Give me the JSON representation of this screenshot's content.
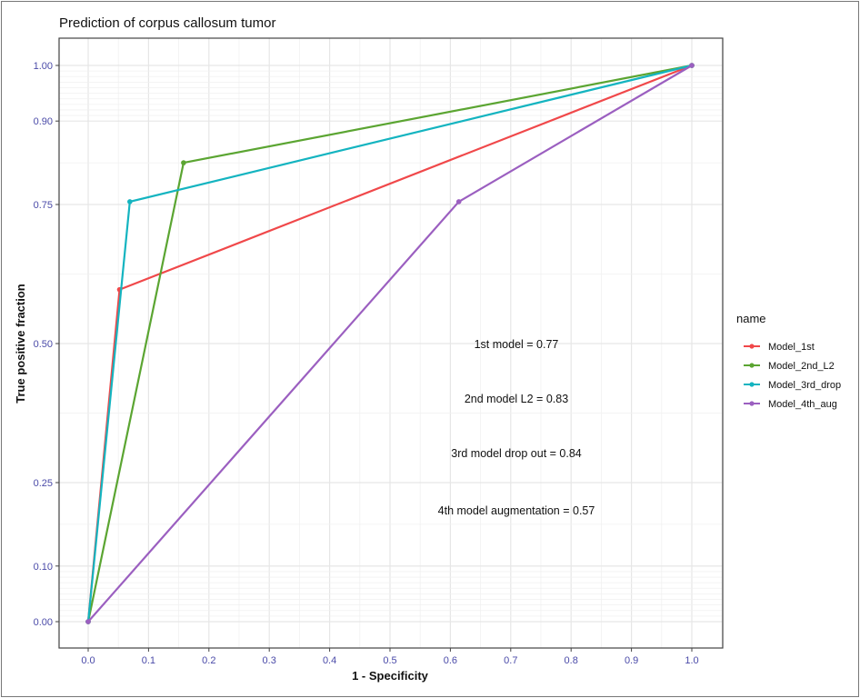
{
  "chart_data": {
    "type": "line",
    "title": "Prediction of corpus callosum tumor",
    "xlabel": "1 - Specificity",
    "ylabel": "True positive fraction",
    "xlim": [
      -0.05,
      1.05
    ],
    "ylim": [
      -0.05,
      1.05
    ],
    "x_ticks": [
      "0.0",
      "0.1",
      "0.2",
      "0.3",
      "0.4",
      "0.5",
      "0.6",
      "0.7",
      "0.8",
      "0.9",
      "1.0"
    ],
    "x_tick_values": [
      0,
      0.1,
      0.2,
      0.3,
      0.4,
      0.5,
      0.6,
      0.7,
      0.8,
      0.9,
      1.0
    ],
    "y_ticks": [
      "0.00",
      "0.10",
      "0.25",
      "0.50",
      "0.75",
      "0.90",
      "1.00"
    ],
    "y_tick_values": [
      0,
      0.1,
      0.25,
      0.5,
      0.75,
      0.9,
      1.0
    ],
    "grid": true,
    "legend": {
      "title": "name",
      "placement": "right"
    },
    "series": [
      {
        "name": "Model_1st",
        "color": "#F0484A",
        "points": [
          [
            0,
            0
          ],
          [
            0.052,
            0.597
          ],
          [
            1,
            1
          ]
        ]
      },
      {
        "name": "Model_2nd_L2",
        "color": "#5BA532",
        "points": [
          [
            0,
            0
          ],
          [
            0.158,
            0.825
          ],
          [
            1,
            1
          ]
        ]
      },
      {
        "name": "Model_3rd_drop",
        "color": "#14B4C0",
        "points": [
          [
            0,
            0
          ],
          [
            0.069,
            0.755
          ],
          [
            1,
            1
          ]
        ]
      },
      {
        "name": "Model_4th_aug",
        "color": "#9B5FC0",
        "points": [
          [
            0,
            0
          ],
          [
            0.614,
            0.755
          ],
          [
            1,
            1
          ]
        ]
      }
    ],
    "annotations": [
      "1st model = 0.77",
      "2nd model L2 = 0.83",
      "3rd model drop out = 0.84",
      "4th model augmentation = 0.57"
    ]
  }
}
